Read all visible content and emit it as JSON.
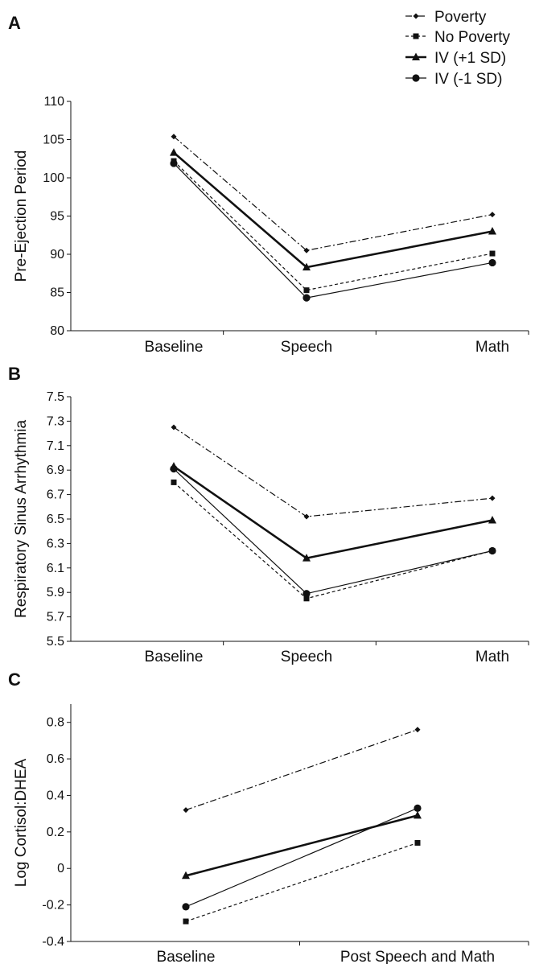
{
  "legend": [
    {
      "label": "Poverty",
      "series_key": "poverty"
    },
    {
      "label": "No Poverty",
      "series_key": "no_poverty"
    },
    {
      "label": "IV (+1 SD)",
      "series_key": "iv_plus"
    },
    {
      "label": "IV (-1 SD)",
      "series_key": "iv_minus"
    }
  ],
  "series_styles": {
    "poverty": {
      "dash": "8,3,2,3",
      "width": 1.2,
      "marker": "diamond"
    },
    "no_poverty": {
      "dash": "4,3",
      "width": 1.2,
      "marker": "square"
    },
    "iv_plus": {
      "dash": "",
      "width": 2.6,
      "marker": "triangle"
    },
    "iv_minus": {
      "dash": "",
      "width": 1.2,
      "marker": "circle"
    }
  },
  "chart_data": [
    {
      "panel_label": "A",
      "type": "line",
      "ylabel": "Pre-Ejection Period",
      "categories": [
        "Baseline",
        "Speech",
        "Math"
      ],
      "ylim": [
        80,
        110
      ],
      "yticks": [
        "80",
        "85",
        "90",
        "95",
        "100",
        "105",
        "110"
      ],
      "series": [
        {
          "name": "Poverty",
          "key": "poverty",
          "values": [
            105.4,
            90.5,
            95.2
          ]
        },
        {
          "name": "No Poverty",
          "key": "no_poverty",
          "values": [
            102.2,
            85.3,
            90.1
          ]
        },
        {
          "name": "IV (+1 SD)",
          "key": "iv_plus",
          "values": [
            103.3,
            88.3,
            93.0
          ]
        },
        {
          "name": "IV (-1 SD)",
          "key": "iv_minus",
          "values": [
            101.9,
            84.3,
            88.9
          ]
        }
      ]
    },
    {
      "panel_label": "B",
      "type": "line",
      "ylabel": "Respiratory Sinus Arrhythmia",
      "categories": [
        "Baseline",
        "Speech",
        "Math"
      ],
      "ylim": [
        5.5,
        7.5
      ],
      "yticks": [
        "5.5",
        "5.7",
        "5.9",
        "6.1",
        "6.3",
        "6.5",
        "6.7",
        "6.9",
        "7.1",
        "7.3",
        "7.5"
      ],
      "series": [
        {
          "name": "Poverty",
          "key": "poverty",
          "values": [
            7.25,
            6.52,
            6.67
          ]
        },
        {
          "name": "No Poverty",
          "key": "no_poverty",
          "values": [
            6.8,
            5.85,
            6.24
          ]
        },
        {
          "name": "IV (+1 SD)",
          "key": "iv_plus",
          "values": [
            6.93,
            6.18,
            6.49
          ]
        },
        {
          "name": "IV (-1 SD)",
          "key": "iv_minus",
          "values": [
            6.91,
            5.89,
            6.24
          ]
        }
      ]
    },
    {
      "panel_label": "C",
      "type": "line",
      "ylabel": "Log Cortisol:DHEA",
      "categories": [
        "Baseline",
        "Post Speech and Math"
      ],
      "ylim": [
        -0.4,
        0.9
      ],
      "yticks": [
        "-0.4",
        "-0.2",
        "0",
        "0.2",
        "0.4",
        "0.6",
        "0.8"
      ],
      "series": [
        {
          "name": "Poverty",
          "key": "poverty",
          "values": [
            0.32,
            0.76
          ]
        },
        {
          "name": "No Poverty",
          "key": "no_poverty",
          "values": [
            -0.29,
            0.14
          ]
        },
        {
          "name": "IV (+1 SD)",
          "key": "iv_plus",
          "values": [
            -0.04,
            0.29
          ]
        },
        {
          "name": "IV (-1 SD)",
          "key": "iv_minus",
          "values": [
            -0.21,
            0.33
          ]
        }
      ]
    }
  ]
}
